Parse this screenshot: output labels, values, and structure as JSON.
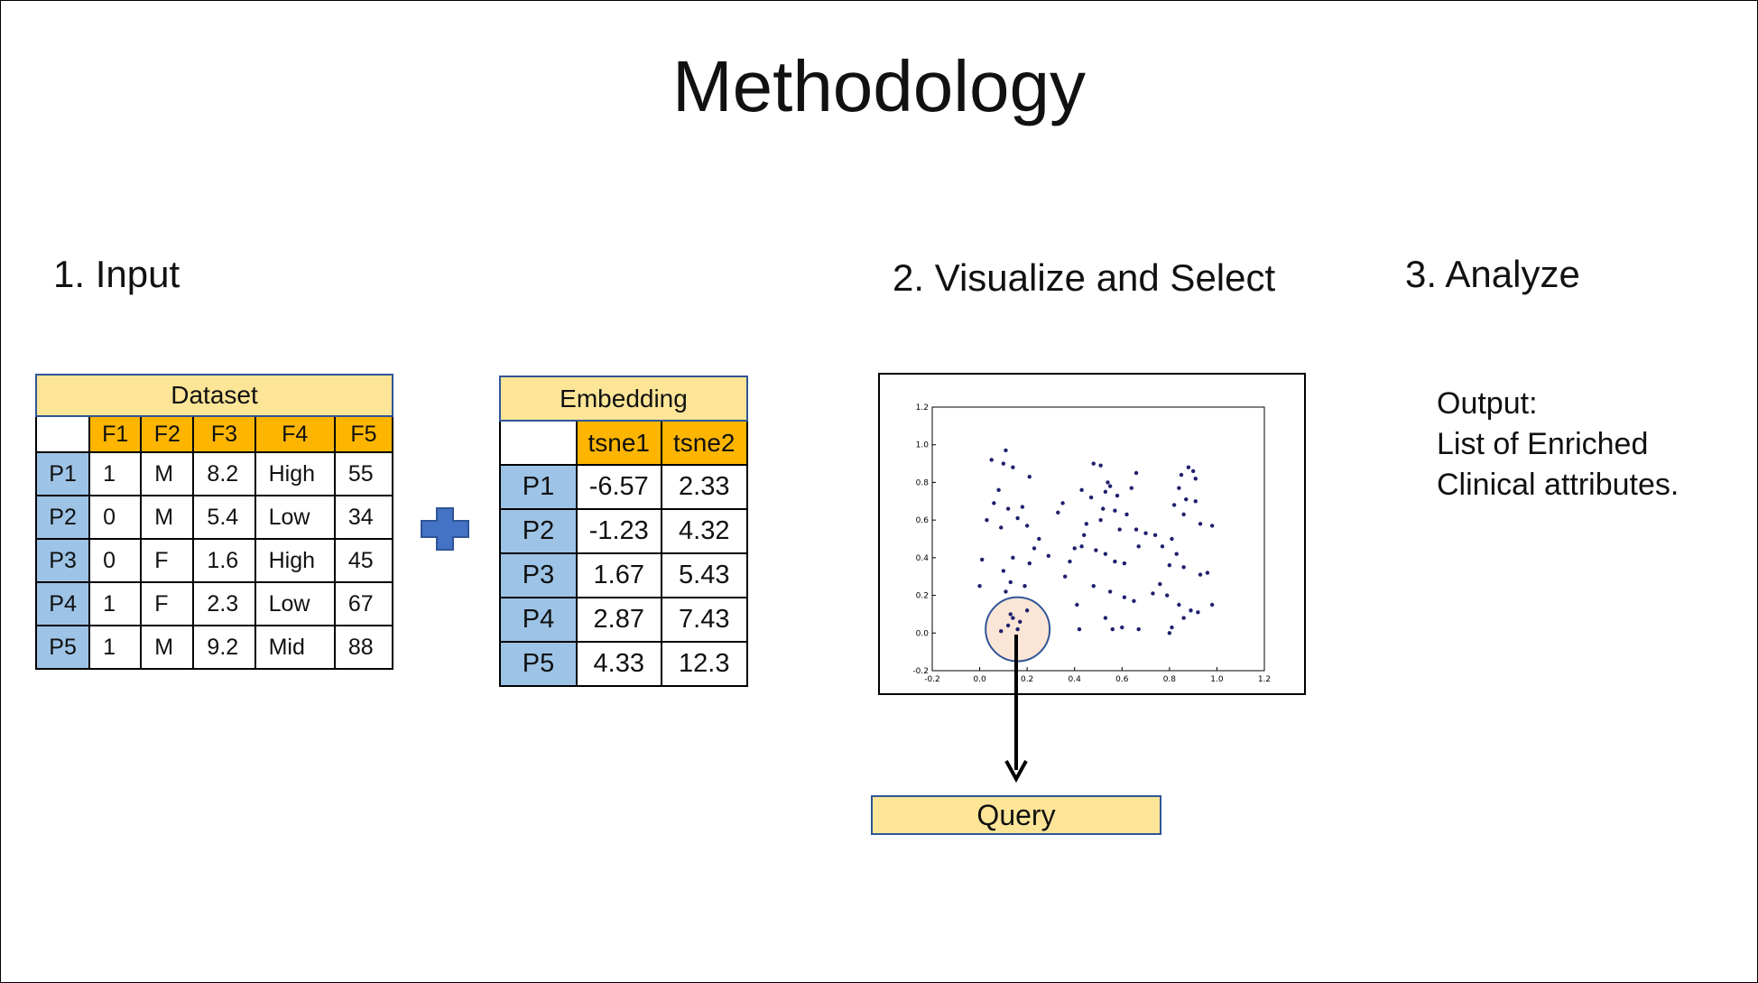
{
  "title": "Methodology",
  "steps": {
    "input": "1. Input",
    "visualize": "2. Visualize and Select",
    "analyze": "3. Analyze"
  },
  "dataset": {
    "caption": "Dataset",
    "columns": [
      "F1",
      "F2",
      "F3",
      "F4",
      "F5"
    ],
    "rows": [
      {
        "id": "P1",
        "cells": [
          "1",
          "M",
          "8.2",
          "High",
          "55"
        ]
      },
      {
        "id": "P2",
        "cells": [
          "0",
          "M",
          "5.4",
          "Low",
          "34"
        ]
      },
      {
        "id": "P3",
        "cells": [
          "0",
          "F",
          "1.6",
          "High",
          "45"
        ]
      },
      {
        "id": "P4",
        "cells": [
          "1",
          "F",
          "2.3",
          "Low",
          "67"
        ]
      },
      {
        "id": "P5",
        "cells": [
          "1",
          "M",
          "9.2",
          "Mid",
          "88"
        ]
      }
    ]
  },
  "embedding": {
    "caption": "Embedding",
    "columns": [
      "tsne1",
      "tsne2"
    ],
    "rows": [
      {
        "id": "P1",
        "cells": [
          "-6.57",
          "2.33"
        ]
      },
      {
        "id": "P2",
        "cells": [
          "-1.23",
          "4.32"
        ]
      },
      {
        "id": "P3",
        "cells": [
          "1.67",
          "5.43"
        ]
      },
      {
        "id": "P4",
        "cells": [
          "2.87",
          "7.43"
        ]
      },
      {
        "id": "P5",
        "cells": [
          "4.33",
          "12.3"
        ]
      }
    ]
  },
  "colors": {
    "caption_fill": "#fde597",
    "header_fill": "#fdb500",
    "row_header_fill": "#9dc3e6",
    "plus_fill": "#4472c4",
    "point_color": "#1f1f6e",
    "selection_fill": "#fbe5d6",
    "selection_stroke": "#2f5597"
  },
  "chart_data": {
    "type": "scatter",
    "xlim": [
      -0.2,
      1.2
    ],
    "ylim": [
      -0.2,
      1.2
    ],
    "x_ticks": [
      "-0.2",
      "0.0",
      "0.2",
      "0.4",
      "0.6",
      "0.8",
      "1.0",
      "1.2"
    ],
    "y_ticks": [
      "-0.2",
      "0.0",
      "0.2",
      "0.4",
      "0.6",
      "0.8",
      "1.0",
      "1.2"
    ],
    "selection": {
      "cx": 0.16,
      "cy": 0.02,
      "rx": 0.135,
      "ry": 0.17
    },
    "points": [
      [
        0.05,
        0.92
      ],
      [
        0.11,
        0.97
      ],
      [
        0.1,
        0.9
      ],
      [
        0.14,
        0.88
      ],
      [
        0.21,
        0.83
      ],
      [
        0.08,
        0.76
      ],
      [
        0.06,
        0.69
      ],
      [
        0.12,
        0.66
      ],
      [
        0.18,
        0.67
      ],
      [
        0.16,
        0.61
      ],
      [
        0.03,
        0.6
      ],
      [
        0.09,
        0.56
      ],
      [
        0.2,
        0.57
      ],
      [
        0.25,
        0.5
      ],
      [
        0.23,
        0.45
      ],
      [
        0.29,
        0.41
      ],
      [
        0.14,
        0.4
      ],
      [
        0.01,
        0.39
      ],
      [
        0.1,
        0.33
      ],
      [
        0.21,
        0.37
      ],
      [
        0.19,
        0.25
      ],
      [
        0.13,
        0.27
      ],
      [
        0.0,
        0.25
      ],
      [
        0.11,
        0.22
      ],
      [
        0.09,
        0.01
      ],
      [
        0.12,
        0.04
      ],
      [
        0.14,
        0.08
      ],
      [
        0.17,
        0.06
      ],
      [
        0.2,
        0.12
      ],
      [
        0.16,
        0.02
      ],
      [
        0.13,
        0.1
      ],
      [
        0.48,
        0.9
      ],
      [
        0.51,
        0.89
      ],
      [
        0.54,
        0.8
      ],
      [
        0.53,
        0.75
      ],
      [
        0.55,
        0.78
      ],
      [
        0.58,
        0.73
      ],
      [
        0.66,
        0.85
      ],
      [
        0.64,
        0.77
      ],
      [
        0.43,
        0.76
      ],
      [
        0.47,
        0.72
      ],
      [
        0.52,
        0.66
      ],
      [
        0.57,
        0.65
      ],
      [
        0.62,
        0.63
      ],
      [
        0.35,
        0.69
      ],
      [
        0.33,
        0.64
      ],
      [
        0.45,
        0.58
      ],
      [
        0.51,
        0.6
      ],
      [
        0.59,
        0.55
      ],
      [
        0.66,
        0.55
      ],
      [
        0.7,
        0.53
      ],
      [
        0.74,
        0.52
      ],
      [
        0.44,
        0.52
      ],
      [
        0.43,
        0.46
      ],
      [
        0.49,
        0.44
      ],
      [
        0.53,
        0.42
      ],
      [
        0.57,
        0.38
      ],
      [
        0.61,
        0.37
      ],
      [
        0.67,
        0.46
      ],
      [
        0.4,
        0.45
      ],
      [
        0.38,
        0.38
      ],
      [
        0.36,
        0.3
      ],
      [
        0.48,
        0.25
      ],
      [
        0.55,
        0.22
      ],
      [
        0.61,
        0.19
      ],
      [
        0.65,
        0.17
      ],
      [
        0.41,
        0.15
      ],
      [
        0.53,
        0.08
      ],
      [
        0.56,
        0.02
      ],
      [
        0.6,
        0.03
      ],
      [
        0.67,
        0.02
      ],
      [
        0.42,
        0.02
      ],
      [
        0.85,
        0.84
      ],
      [
        0.88,
        0.88
      ],
      [
        0.9,
        0.86
      ],
      [
        0.84,
        0.77
      ],
      [
        0.87,
        0.71
      ],
      [
        0.91,
        0.7
      ],
      [
        0.82,
        0.68
      ],
      [
        0.86,
        0.63
      ],
      [
        0.93,
        0.58
      ],
      [
        0.98,
        0.57
      ],
      [
        0.81,
        0.5
      ],
      [
        0.77,
        0.46
      ],
      [
        0.83,
        0.42
      ],
      [
        0.8,
        0.36
      ],
      [
        0.86,
        0.35
      ],
      [
        0.93,
        0.31
      ],
      [
        0.96,
        0.32
      ],
      [
        0.76,
        0.26
      ],
      [
        0.79,
        0.2
      ],
      [
        0.73,
        0.21
      ],
      [
        0.84,
        0.15
      ],
      [
        0.89,
        0.12
      ],
      [
        0.92,
        0.11
      ],
      [
        0.98,
        0.15
      ],
      [
        0.86,
        0.08
      ],
      [
        0.81,
        0.03
      ],
      [
        0.8,
        0.0
      ],
      [
        0.91,
        0.82
      ]
    ]
  },
  "output": {
    "label": "Output:",
    "line1": "List of Enriched",
    "line2": "Clinical attributes."
  },
  "query": {
    "label": "Query"
  }
}
